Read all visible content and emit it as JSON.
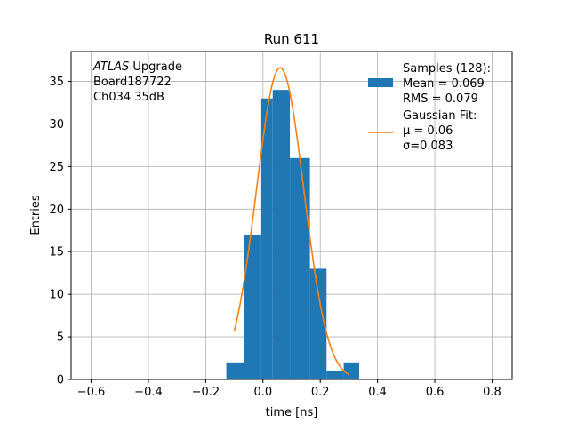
{
  "chart_data": {
    "type": "bar",
    "title": "Run 611",
    "xlabel": "time [ns]",
    "ylabel": "Entries",
    "xlim": [
      -0.67,
      0.87
    ],
    "ylim": [
      0,
      38.5
    ],
    "grid": true,
    "x_ticks": [
      "−0.6",
      "−0.4",
      "−0.2",
      "0.0",
      "0.2",
      "0.4",
      "0.6",
      "0.8"
    ],
    "x_tick_values": [
      -0.6,
      -0.4,
      -0.2,
      0.0,
      0.2,
      0.4,
      0.6,
      0.8
    ],
    "y_ticks": [
      "0",
      "5",
      "10",
      "15",
      "20",
      "25",
      "30",
      "35"
    ],
    "y_tick_values": [
      0,
      5,
      10,
      15,
      20,
      25,
      30,
      35
    ],
    "histogram": {
      "color": "#1f77b4",
      "bin_edges": [
        -0.128,
        -0.066,
        -0.006,
        0.034,
        0.094,
        0.164,
        0.222,
        0.282,
        0.336
      ],
      "counts": [
        2,
        17,
        33,
        34,
        26,
        13,
        1,
        2
      ]
    },
    "gaussian_fit": {
      "color": "#ff7f0e",
      "amplitude": 36.6,
      "mu": 0.06,
      "sigma": 0.083,
      "x_range": [
        -0.1,
        0.3
      ]
    },
    "annotation": {
      "lines": [
        {
          "italic": "ATLAS",
          "rest": " Upgrade"
        },
        {
          "italic": "",
          "rest": " Board187722"
        },
        {
          "italic": "",
          "rest": " Ch034 35dB"
        }
      ]
    },
    "legend": {
      "position": "upper right",
      "entries": [
        {
          "lines": [
            "Samples (128):",
            " Mean = 0.069",
            " RMS = 0.079"
          ],
          "kind": "patch",
          "color": "#1f77b4"
        },
        {
          "lines": [
            "Gaussian Fit:",
            " μ = 0.06",
            " σ=0.083"
          ],
          "kind": "line",
          "color": "#ff7f0e"
        }
      ]
    }
  }
}
